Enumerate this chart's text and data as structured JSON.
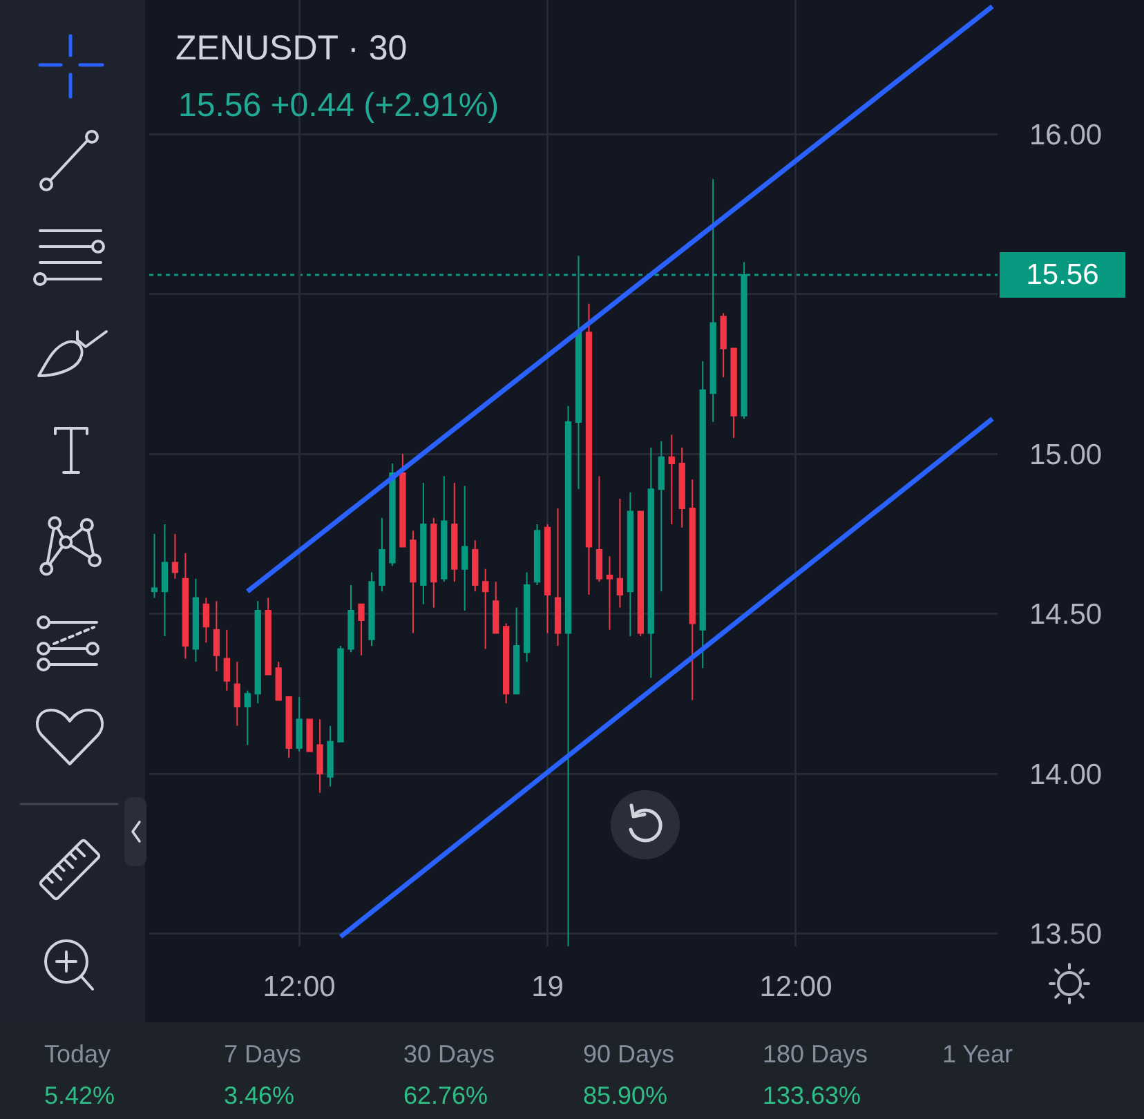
{
  "chart_data": {
    "type": "candlestick",
    "title": "ZENUSDT · 30",
    "subtitle": "15.56 +0.44 (+2.91%)",
    "categories": [
      null,
      null,
      null,
      null,
      null,
      null,
      null,
      null,
      null,
      null,
      null,
      null,
      null,
      null,
      "12:00",
      null,
      null,
      null,
      null,
      null,
      null,
      null,
      null,
      null,
      null,
      null,
      null,
      null,
      null,
      null,
      null,
      null,
      null,
      null,
      null,
      null,
      null,
      null,
      "19",
      null,
      null,
      null,
      null,
      null,
      null,
      null,
      null,
      null,
      null,
      null,
      null,
      null,
      null,
      null,
      null,
      null,
      null,
      null,
      null,
      null,
      null,
      null,
      "12:00",
      null,
      null,
      null,
      null,
      null,
      null,
      null,
      null,
      null,
      null,
      null,
      null,
      null,
      null,
      null,
      null,
      null,
      null,
      null
    ],
    "ohlc": [
      [
        14.57,
        14.75,
        14.55,
        14.58
      ],
      [
        14.57,
        14.78,
        14.43,
        14.66
      ],
      [
        14.66,
        14.75,
        14.61,
        14.63
      ],
      [
        14.61,
        14.69,
        14.36,
        14.4
      ],
      [
        14.39,
        14.61,
        14.35,
        14.55
      ],
      [
        14.53,
        14.55,
        14.41,
        14.46
      ],
      [
        14.45,
        14.54,
        14.32,
        14.37
      ],
      [
        14.36,
        14.45,
        14.26,
        14.29
      ],
      [
        14.28,
        14.35,
        14.15,
        14.21
      ],
      [
        14.21,
        14.26,
        14.09,
        14.25
      ],
      [
        14.25,
        14.54,
        14.22,
        14.51
      ],
      [
        14.51,
        14.55,
        14.31,
        14.31
      ],
      [
        14.33,
        14.35,
        14.23,
        14.23
      ],
      [
        14.24,
        14.24,
        14.05,
        14.08
      ],
      [
        14.08,
        14.24,
        14.07,
        14.17
      ],
      [
        14.17,
        14.17,
        14.07,
        14.07
      ],
      [
        14.09,
        14.17,
        13.94,
        14.0
      ],
      [
        13.99,
        14.15,
        13.96,
        14.1
      ],
      [
        14.1,
        14.4,
        14.1,
        14.39
      ],
      [
        14.39,
        14.59,
        14.38,
        14.51
      ],
      [
        14.53,
        14.53,
        14.37,
        14.48
      ],
      [
        14.42,
        14.63,
        14.4,
        14.6
      ],
      [
        14.59,
        14.8,
        14.57,
        14.7
      ],
      [
        14.66,
        14.97,
        14.65,
        14.94
      ],
      [
        14.94,
        15.0,
        14.71,
        14.71
      ],
      [
        14.73,
        14.76,
        14.44,
        14.6
      ],
      [
        14.59,
        14.91,
        14.53,
        14.78
      ],
      [
        14.78,
        14.8,
        14.52,
        14.6
      ],
      [
        14.61,
        14.93,
        14.6,
        14.79
      ],
      [
        14.78,
        14.91,
        14.6,
        14.64
      ],
      [
        14.64,
        14.9,
        14.51,
        14.71
      ],
      [
        14.7,
        14.73,
        14.57,
        14.59
      ],
      [
        14.6,
        14.64,
        14.39,
        14.57
      ],
      [
        14.54,
        14.6,
        14.44,
        14.44
      ],
      [
        14.46,
        14.47,
        14.22,
        14.25
      ],
      [
        14.25,
        14.52,
        14.25,
        14.4
      ],
      [
        14.38,
        14.63,
        14.35,
        14.59
      ],
      [
        14.6,
        14.78,
        14.59,
        14.76
      ],
      [
        14.77,
        14.78,
        14.44,
        14.56
      ],
      [
        14.55,
        14.83,
        14.4,
        14.44
      ],
      [
        14.44,
        15.15,
        13.46,
        15.1
      ],
      [
        15.1,
        15.62,
        14.89,
        15.38
      ],
      [
        15.38,
        15.47,
        14.56,
        14.71
      ],
      [
        14.7,
        14.93,
        14.6,
        14.61
      ],
      [
        14.62,
        14.68,
        14.45,
        14.61
      ],
      [
        14.61,
        14.86,
        14.52,
        14.56
      ],
      [
        14.57,
        14.88,
        14.43,
        14.82
      ],
      [
        14.82,
        14.82,
        14.43,
        14.44
      ],
      [
        14.44,
        15.02,
        14.3,
        14.89
      ],
      [
        14.89,
        15.04,
        14.57,
        14.99
      ],
      [
        14.99,
        15.06,
        14.78,
        14.97
      ],
      [
        14.97,
        15.02,
        14.77,
        14.83
      ],
      [
        14.83,
        14.92,
        14.23,
        14.47
      ],
      [
        14.45,
        15.29,
        14.33,
        15.2
      ],
      [
        15.19,
        15.86,
        15.1,
        15.41
      ],
      [
        15.43,
        15.44,
        15.24,
        15.33
      ],
      [
        15.33,
        15.33,
        15.05,
        15.12
      ],
      [
        15.12,
        15.6,
        15.11,
        15.56
      ],
      null,
      null,
      null,
      null,
      null,
      null,
      null,
      null,
      null,
      null,
      null,
      null,
      null,
      null,
      null,
      null,
      null,
      null,
      null,
      null,
      null,
      null,
      null,
      null
    ],
    "colors": [
      "#089981",
      "#089981",
      "#f23645",
      "#f23645",
      "#089981",
      "#f23645",
      "#f23645",
      "#f23645",
      "#f23645",
      "#089981",
      "#089981",
      "#f23645",
      "#f23645",
      "#f23645",
      "#089981",
      "#f23645",
      "#f23645",
      "#089981",
      "#089981",
      "#089981",
      "#f23645",
      "#089981",
      "#089981",
      "#089981",
      "#f23645",
      "#f23645",
      "#089981",
      "#f23645",
      "#089981",
      "#f23645",
      "#089981",
      "#f23645",
      "#f23645",
      "#f23645",
      "#f23645",
      "#089981",
      "#089981",
      "#089981",
      "#f23645",
      "#f23645",
      "#089981",
      "#089981",
      "#f23645",
      "#f23645",
      "#f23645",
      "#f23645",
      "#089981",
      "#f23645",
      "#089981",
      "#089981",
      "#f23645",
      "#f23645",
      "#f23645",
      "#089981",
      "#089981",
      "#f23645",
      "#f23645",
      "#089981",
      null,
      null,
      null,
      null,
      null,
      null,
      null,
      null,
      null,
      null,
      null,
      null,
      null,
      null,
      null,
      null,
      null,
      null,
      null,
      null,
      null,
      null,
      null,
      null
    ],
    "series": [
      {
        "type": "line",
        "color": "#2962ff",
        "values": [
          null,
          null,
          null,
          null,
          null,
          null,
          null,
          null,
          null,
          14.57,
          null,
          null,
          null,
          null,
          null,
          null,
          null,
          null,
          null,
          null,
          null,
          null,
          null,
          null,
          null,
          null,
          null,
          null,
          null,
          null,
          null,
          null,
          null,
          null,
          null,
          null,
          null,
          null,
          null,
          null,
          null,
          null,
          null,
          null,
          null,
          null,
          null,
          null,
          null,
          null,
          null,
          null,
          null,
          null,
          null,
          null,
          null,
          null,
          null,
          null,
          null,
          null,
          null,
          null,
          null,
          null,
          null,
          null,
          null,
          null,
          null,
          null,
          null,
          null,
          null,
          null,
          null,
          null,
          null,
          null,
          null,
          16.4
        ]
      },
      {
        "type": "line",
        "color": "#2962ff",
        "values": [
          null,
          null,
          null,
          null,
          null,
          null,
          null,
          null,
          null,
          null,
          null,
          null,
          null,
          null,
          null,
          null,
          null,
          null,
          13.49,
          null,
          null,
          null,
          null,
          null,
          null,
          null,
          null,
          null,
          null,
          null,
          null,
          null,
          null,
          null,
          null,
          null,
          null,
          null,
          null,
          null,
          null,
          null,
          null,
          null,
          null,
          null,
          null,
          null,
          null,
          null,
          null,
          null,
          null,
          null,
          null,
          null,
          null,
          null,
          null,
          null,
          null,
          null,
          null,
          null,
          null,
          null,
          null,
          null,
          null,
          null,
          null,
          null,
          null,
          null,
          null,
          null,
          null,
          null,
          null,
          null,
          null,
          15.11
        ]
      }
    ],
    "ref_lines": [
      {
        "axis": "y",
        "value": 15.56,
        "label": "15.56",
        "color": "#089981",
        "line_style": "dotted"
      }
    ],
    "annotations": [
      "Today",
      "5.42%",
      "7 Days",
      "3.46%",
      "30 Days",
      "62.76%",
      "90 Days",
      "85.90%",
      "180 Days",
      "133.63%",
      "1 Year"
    ],
    "ylim": [
      13.46,
      16.42
    ],
    "yticks": [
      {
        "value": 13.5,
        "label": "13.50"
      },
      {
        "value": 14,
        "label": "14.00"
      },
      {
        "value": 14.5,
        "label": "14.50"
      },
      {
        "value": 15,
        "label": "15.00"
      },
      {
        "value": 15.5,
        "label": null
      },
      {
        "value": 16,
        "label": "16.00"
      }
    ],
    "grid": true
  }
}
